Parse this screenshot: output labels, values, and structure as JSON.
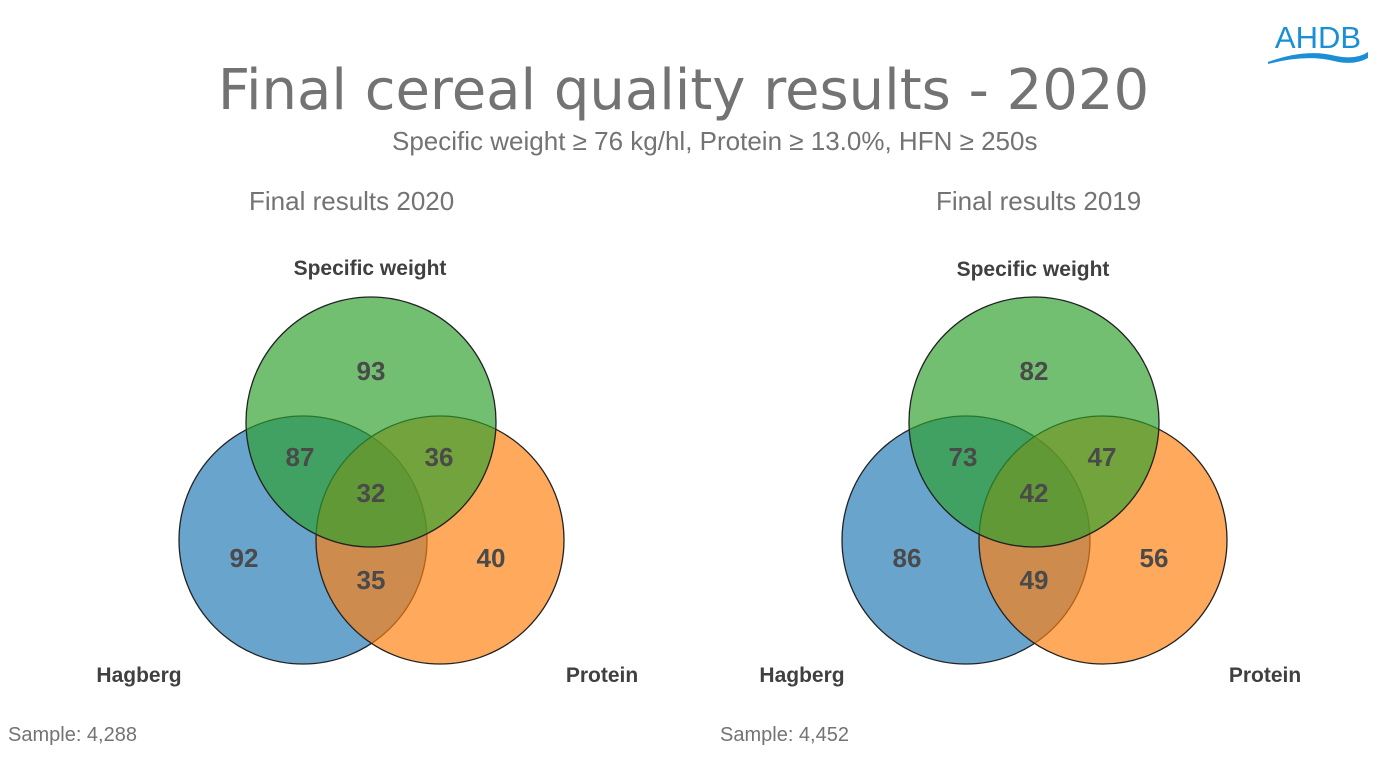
{
  "header": {
    "title": "Final cereal quality results - 2020",
    "subtitle": "Specific weight ≥ 76 kg/hl, Protein ≥ 13.0%, HFN ≥ 250s",
    "logo_text": "AHDB"
  },
  "colors": {
    "green": "#2ca02c",
    "blue": "#1f77b4",
    "orange": "#ff7f0e",
    "logo": "#1a8fd6"
  },
  "chart_data": [
    {
      "type": "venn",
      "title": "Final results 2020",
      "sets": [
        "Specific weight",
        "Hagberg",
        "Protein"
      ],
      "regions": {
        "sw_only": 93,
        "hag_only": 92,
        "prot_only": 40,
        "sw_hag": 87,
        "sw_prot": 36,
        "hag_prot": 35,
        "all": 32
      },
      "sample": "Sample: 4,288"
    },
    {
      "type": "venn",
      "title": "Final results 2019",
      "sets": [
        "Specific weight",
        "Hagberg",
        "Protein"
      ],
      "regions": {
        "sw_only": 82,
        "hag_only": 86,
        "prot_only": 56,
        "sw_hag": 73,
        "sw_prot": 47,
        "hag_prot": 49,
        "all": 42
      },
      "sample": "Sample: 4,452"
    }
  ]
}
